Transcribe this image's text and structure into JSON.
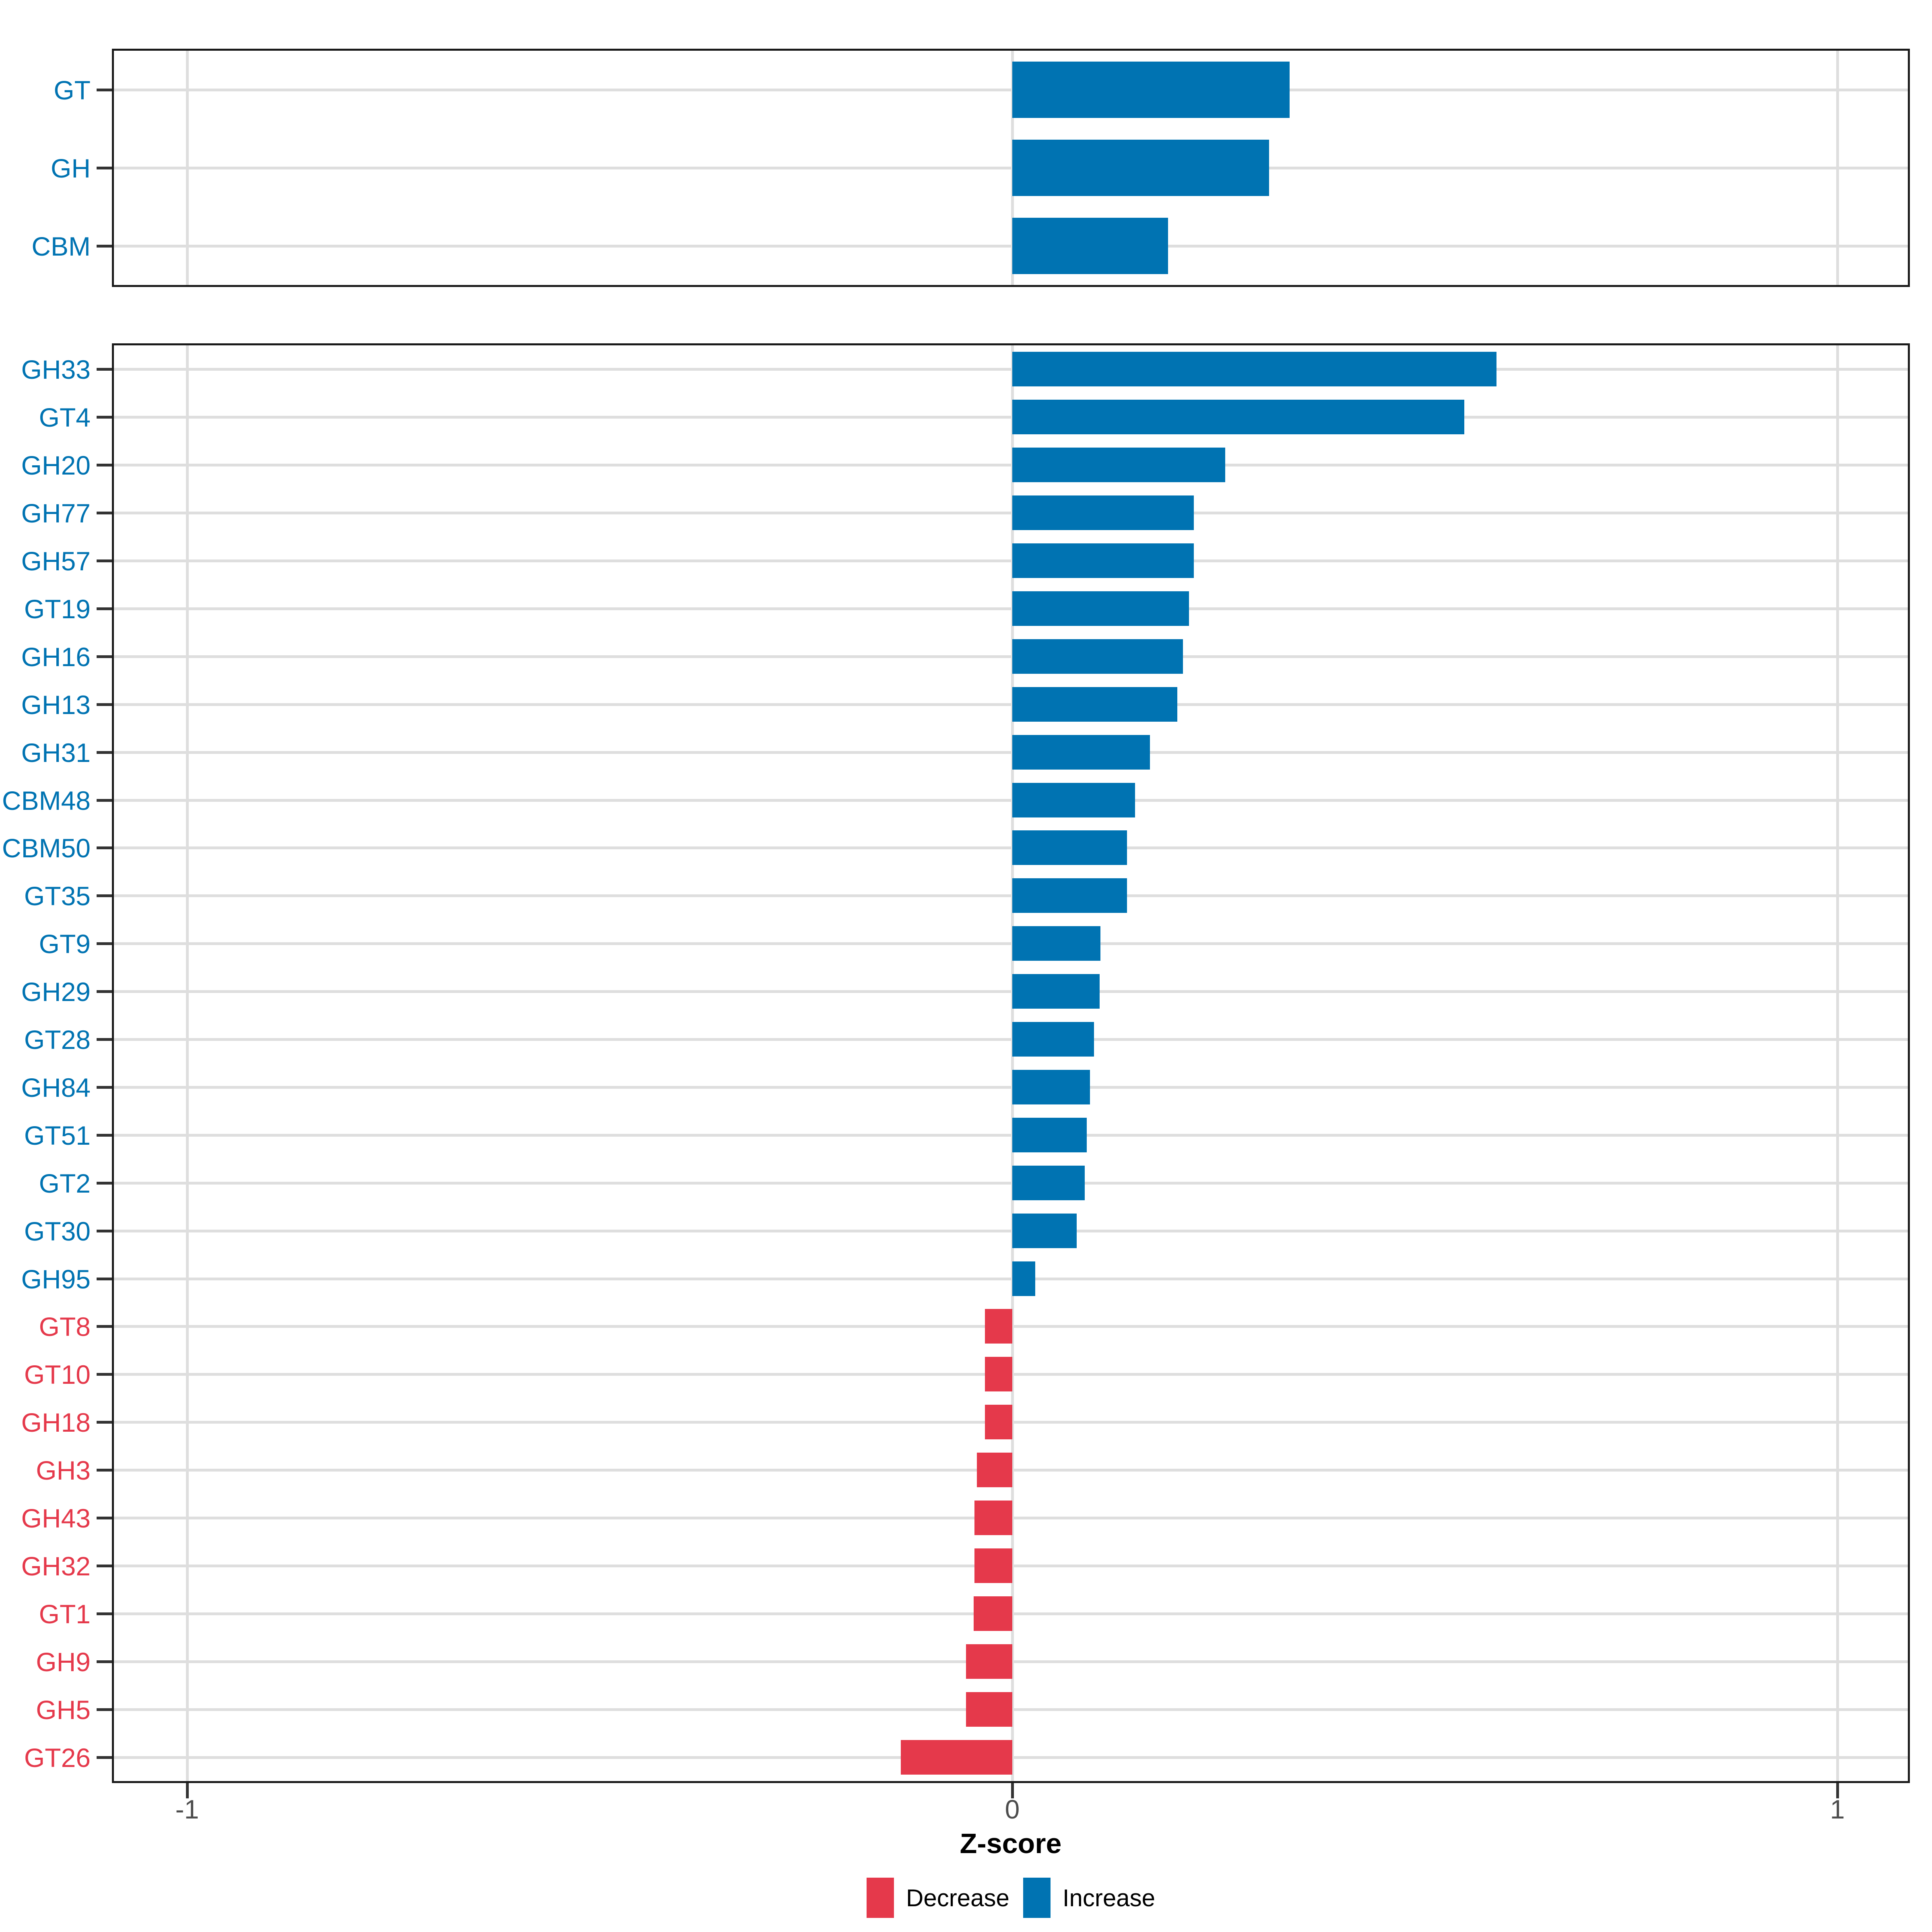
{
  "chart_data": {
    "type": "bar",
    "orientation": "horizontal",
    "title": "",
    "xlabel": "Z-score",
    "x_ticks": [
      "-1",
      "0",
      "1"
    ],
    "x_tick_values": [
      -1,
      0,
      1
    ],
    "xlim": [
      -1.09,
      1.09
    ],
    "grid": "major",
    "legend_position": "bottom",
    "legend": [
      {
        "label": "Decrease",
        "color": "#E5394B"
      },
      {
        "label": "Increase",
        "color": "#0073B2"
      }
    ],
    "panels": [
      {
        "id": "summary-panel",
        "categories": [
          "GT",
          "GH",
          "CBM"
        ],
        "values": [
          0.336,
          0.311,
          0.189
        ]
      },
      {
        "id": "family-panel",
        "categories": [
          "GH33",
          "GT4",
          "GH20",
          "GH77",
          "GH57",
          "GT19",
          "GH16",
          "GH13",
          "GH31",
          "CBM48",
          "CBM50",
          "GT35",
          "GT9",
          "GH29",
          "GT28",
          "GH84",
          "GT51",
          "GT2",
          "GT30",
          "GH95",
          "GT8",
          "GT10",
          "GH18",
          "GH3",
          "GH43",
          "GH32",
          "GT1",
          "GH9",
          "GH5",
          "GT26"
        ],
        "values": [
          0.587,
          0.548,
          0.258,
          0.22,
          0.22,
          0.214,
          0.207,
          0.2,
          0.167,
          0.149,
          0.139,
          0.139,
          0.107,
          0.106,
          0.099,
          0.094,
          0.09,
          0.088,
          0.078,
          0.028,
          -0.033,
          -0.033,
          -0.033,
          -0.043,
          -0.046,
          -0.046,
          -0.047,
          -0.056,
          -0.056,
          -0.135
        ]
      }
    ]
  }
}
